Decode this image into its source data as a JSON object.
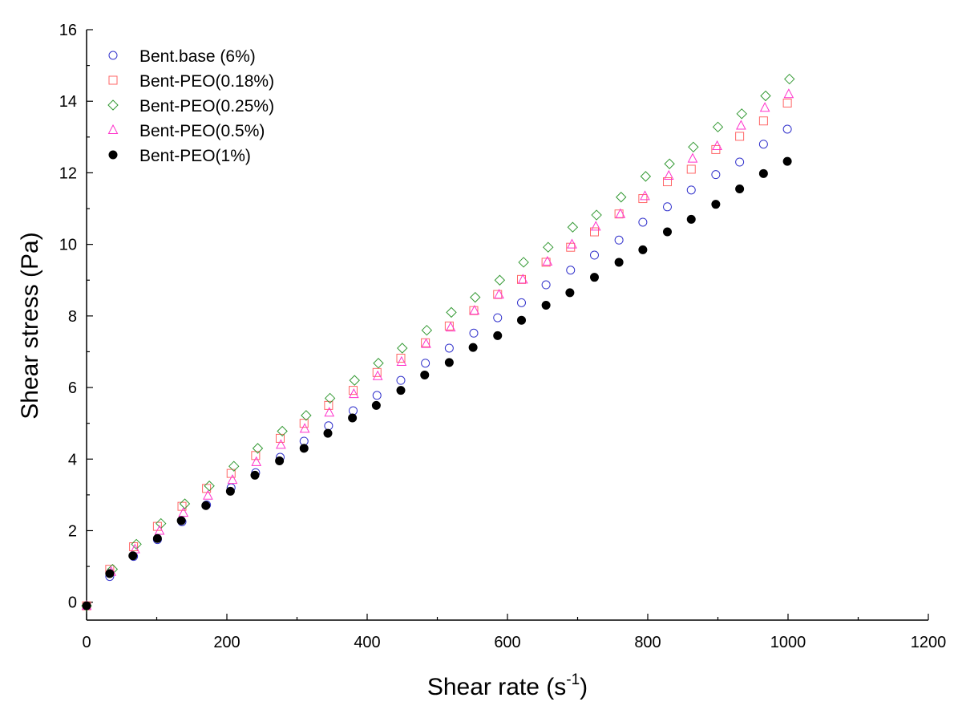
{
  "chart_data": {
    "type": "scatter",
    "title": "",
    "xlabel": "Shear rate (s",
    "xlabel_sup": "-1",
    "xlabel_close": ")",
    "ylabel": "Shear stress (Pa)",
    "xlim": [
      0,
      1200
    ],
    "ylim": [
      -0.5,
      16
    ],
    "xticks": [
      0,
      200,
      400,
      600,
      800,
      1000,
      1200
    ],
    "yticks": [
      0,
      2,
      4,
      6,
      8,
      10,
      12,
      14,
      16
    ],
    "x_minor_step": 100,
    "y_minor_step": 1,
    "grid": false,
    "legend_position": "top-left",
    "series": [
      {
        "name": "Bent.base (6%)",
        "marker": "circle-open",
        "color": "#3333cc",
        "x": [
          0,
          33,
          67,
          101,
          136,
          171,
          206,
          241,
          276,
          310,
          345,
          380,
          414,
          448,
          483,
          517,
          552,
          586,
          620,
          655,
          690,
          724,
          759,
          793,
          828,
          862,
          897,
          931,
          965,
          999
        ],
        "y": [
          -0.1,
          0.72,
          1.28,
          1.75,
          2.25,
          2.72,
          3.2,
          3.62,
          4.05,
          4.5,
          4.93,
          5.35,
          5.78,
          6.2,
          6.68,
          7.1,
          7.52,
          7.95,
          8.37,
          8.87,
          9.28,
          9.7,
          10.12,
          10.62,
          11.05,
          11.52,
          11.95,
          12.3,
          12.8,
          13.22
        ]
      },
      {
        "name": "Bent-PEO(0.18%)",
        "marker": "square-open",
        "color": "#ff6666",
        "x": [
          0,
          33,
          67,
          101,
          136,
          171,
          206,
          241,
          276,
          310,
          345,
          380,
          414,
          448,
          483,
          517,
          552,
          586,
          620,
          655,
          690,
          724,
          759,
          793,
          828,
          862,
          897,
          931,
          965,
          999
        ],
        "y": [
          -0.1,
          0.92,
          1.55,
          2.12,
          2.68,
          3.18,
          3.6,
          4.1,
          4.58,
          5.0,
          5.5,
          5.92,
          6.42,
          6.82,
          7.25,
          7.72,
          8.15,
          8.6,
          9.02,
          9.5,
          9.92,
          10.35,
          10.85,
          11.28,
          11.75,
          12.1,
          12.65,
          13.02,
          13.45,
          13.95
        ]
      },
      {
        "name": "Bent-PEO(0.25%)",
        "marker": "diamond-open",
        "color": "#339933",
        "x": [
          0,
          37,
          71,
          106,
          140,
          175,
          210,
          244,
          279,
          313,
          347,
          382,
          416,
          450,
          485,
          520,
          554,
          589,
          623,
          658,
          693,
          727,
          762,
          797,
          831,
          865,
          900,
          934,
          968,
          1002
        ],
        "y": [
          -0.1,
          0.92,
          1.62,
          2.2,
          2.75,
          3.25,
          3.8,
          4.3,
          4.78,
          5.22,
          5.7,
          6.2,
          6.68,
          7.1,
          7.6,
          8.1,
          8.52,
          9.0,
          9.5,
          9.92,
          10.48,
          10.82,
          11.32,
          11.9,
          12.25,
          12.72,
          13.28,
          13.65,
          14.15,
          14.62
        ]
      },
      {
        "name": "Bent-PEO(0.5%)",
        "marker": "triangle-open",
        "color": "#ff33cc",
        "x": [
          0,
          35,
          69,
          104,
          138,
          173,
          208,
          242,
          277,
          311,
          346,
          381,
          415,
          449,
          484,
          519,
          553,
          588,
          622,
          657,
          692,
          726,
          761,
          796,
          830,
          864,
          899,
          933,
          967,
          1001
        ],
        "y": [
          -0.1,
          0.85,
          1.48,
          2.0,
          2.5,
          2.98,
          3.42,
          3.92,
          4.4,
          4.85,
          5.3,
          5.82,
          6.32,
          6.72,
          7.22,
          7.68,
          8.15,
          8.6,
          9.02,
          9.52,
          10.0,
          10.5,
          10.85,
          11.35,
          11.92,
          12.4,
          12.75,
          13.32,
          13.82,
          14.2
        ]
      },
      {
        "name": "Bent-PEO(1%)",
        "marker": "circle-filled",
        "color": "#000000",
        "x": [
          0,
          33,
          66,
          101,
          135,
          170,
          205,
          240,
          275,
          310,
          344,
          379,
          413,
          448,
          482,
          517,
          551,
          586,
          620,
          655,
          689,
          724,
          759,
          793,
          828,
          862,
          897,
          931,
          965,
          999
        ],
        "y": [
          -0.1,
          0.8,
          1.3,
          1.78,
          2.28,
          2.7,
          3.1,
          3.55,
          3.95,
          4.3,
          4.72,
          5.15,
          5.5,
          5.92,
          6.35,
          6.7,
          7.12,
          7.45,
          7.88,
          8.3,
          8.65,
          9.08,
          9.5,
          9.85,
          10.35,
          10.7,
          11.12,
          11.55,
          11.98,
          12.32
        ]
      }
    ]
  }
}
